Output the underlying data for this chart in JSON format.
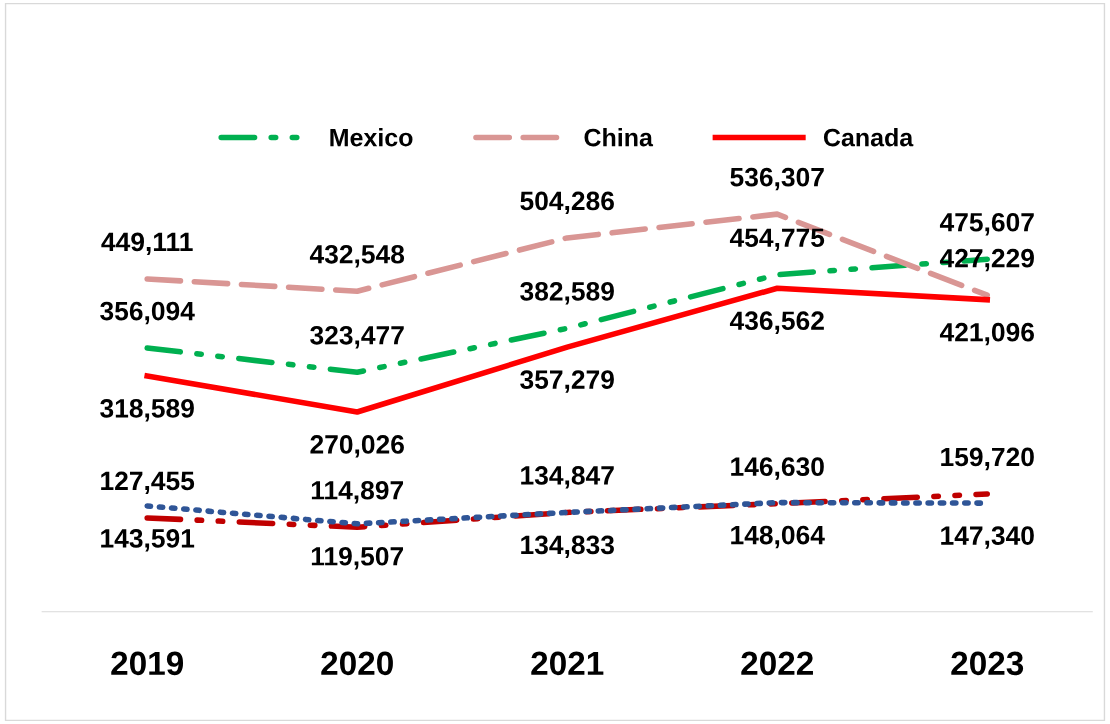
{
  "chart_data": {
    "type": "line",
    "categories": [
      "2019",
      "2020",
      "2021",
      "2022",
      "2023"
    ],
    "series": [
      {
        "name": "Mexico",
        "color": "#00b050",
        "line_style": "dashdot",
        "values": [
          356094,
          323477,
          382589,
          454775,
          475607
        ],
        "value_labels": [
          "356,094",
          "323,477",
          "382,589",
          "454,775",
          "475,607"
        ]
      },
      {
        "name": "China",
        "color": "#d99694",
        "line_style": "dashed",
        "values": [
          449111,
          432548,
          504286,
          536307,
          427229
        ],
        "value_labels": [
          "449,111",
          "432,548",
          "504,286",
          "536,307",
          "427,229"
        ]
      },
      {
        "name": "Canada",
        "color": "#ff0000",
        "line_style": "solid",
        "values": [
          318589,
          270026,
          357279,
          436562,
          421096
        ],
        "value_labels": [
          "318,589",
          "270,026",
          "357,279",
          "436,562",
          "421,096"
        ]
      },
      {
        "color": "#c00000",
        "line_style": "dashdot",
        "values": [
          127455,
          114897,
          134847,
          146630,
          159720
        ],
        "value_labels": [
          "127,455",
          "114,897",
          "134,847",
          "146,630",
          "159,720"
        ]
      },
      {
        "color": "#2f5597",
        "line_style": "dotted",
        "values": [
          143591,
          119507,
          134833,
          148064,
          147340
        ],
        "value_labels": [
          "143,591",
          "119,507",
          "134,833",
          "148,064",
          "147,340"
        ]
      }
    ],
    "tick_labels": "x",
    "legend": "top",
    "grid": false
  }
}
